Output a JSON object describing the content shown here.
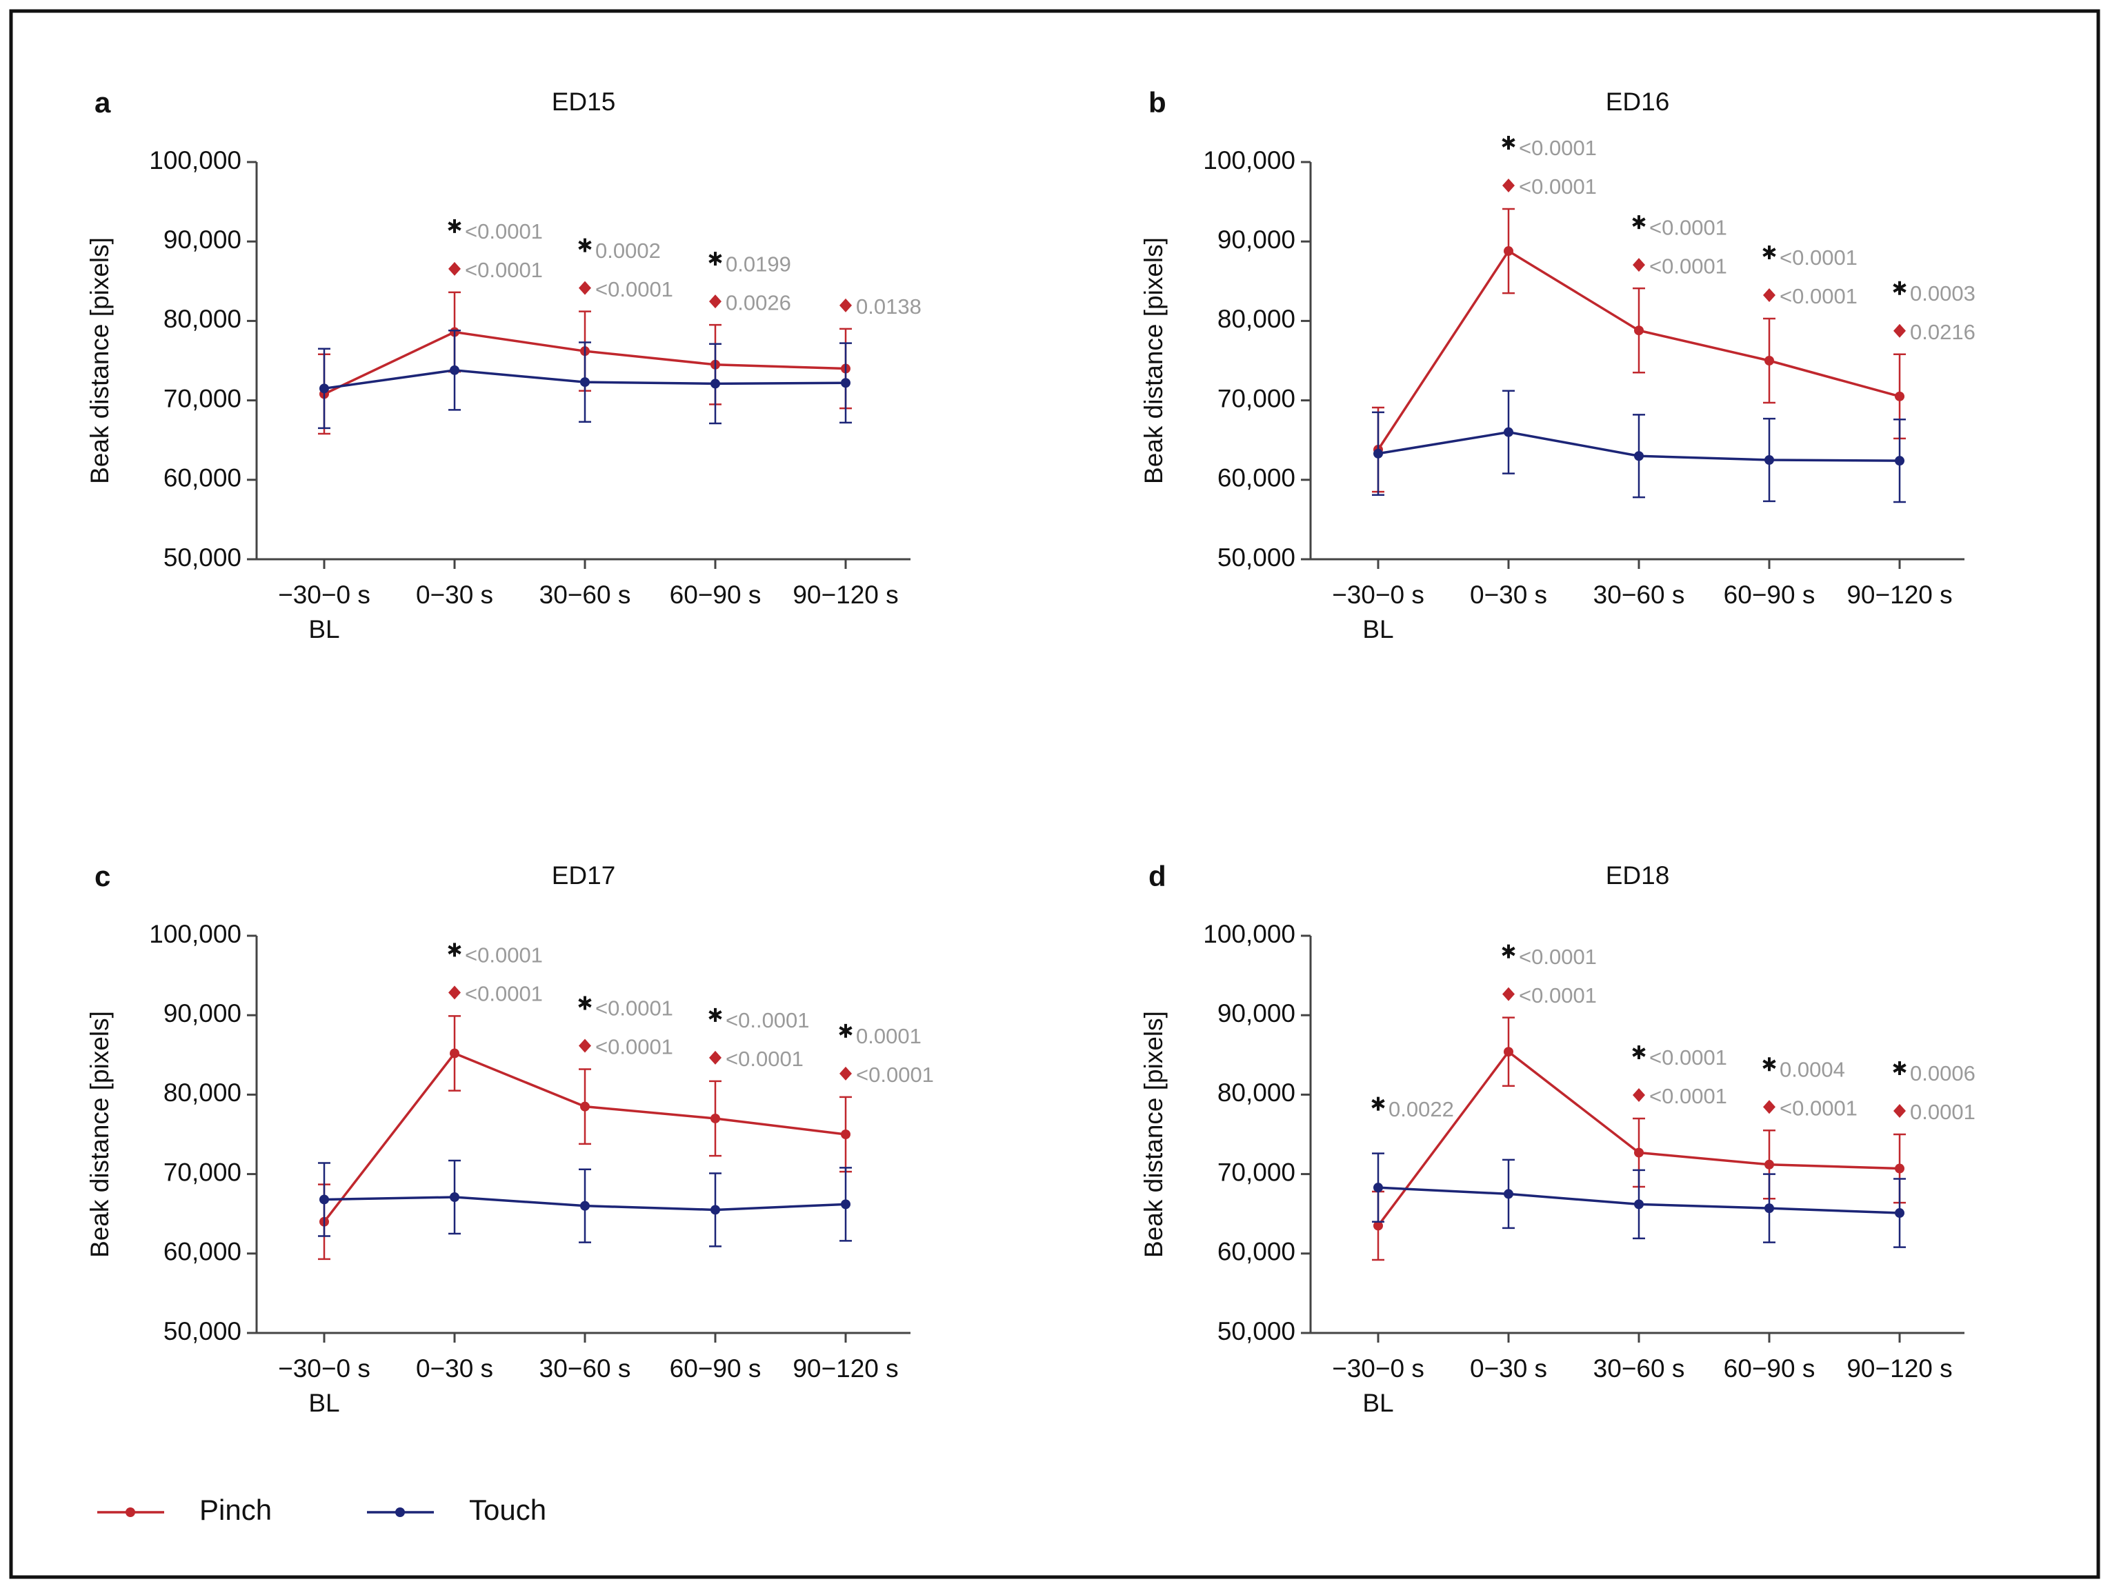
{
  "chart_data": [
    {
      "type": "line",
      "label": "a",
      "title": "ED15",
      "ylabel": "Beak distance [pixels]",
      "categories": [
        "−30−0 s",
        "0−30 s",
        "30−60 s",
        "60−90 s",
        "90−120 s"
      ],
      "baseline_label": "BL",
      "ylim": [
        50000,
        100000
      ],
      "yticks": [
        {
          "value": 50000,
          "label": "50,000"
        },
        {
          "value": 60000,
          "label": "60,000"
        },
        {
          "value": 70000,
          "label": "70,000"
        },
        {
          "value": 80000,
          "label": "80,000"
        },
        {
          "value": 90000,
          "label": "90,000"
        },
        {
          "value": 100000,
          "label": "100,000"
        }
      ],
      "series": [
        {
          "name": "Pinch",
          "color": "#c0272d",
          "values": [
            70800,
            78600,
            76200,
            74500,
            74000
          ],
          "errors": [
            5000,
            5000,
            5000,
            5000,
            5000
          ]
        },
        {
          "name": "Touch",
          "color": "#1c2577",
          "values": [
            71500,
            73800,
            72300,
            72100,
            72200
          ],
          "errors": [
            5000,
            5000,
            5000,
            5000,
            5000
          ]
        }
      ],
      "star_labels": [
        null,
        "<0.0001",
        "0.0002",
        "0.0199",
        null
      ],
      "diamond_labels": [
        null,
        "<0.0001",
        "<0.0001",
        "0.0026",
        "0.0138"
      ]
    },
    {
      "type": "line",
      "label": "b",
      "title": "ED16",
      "ylabel": "Beak distance [pixels]",
      "categories": [
        "−30−0 s",
        "0−30 s",
        "30−60 s",
        "60−90 s",
        "90−120 s"
      ],
      "baseline_label": "BL",
      "ylim": [
        50000,
        100000
      ],
      "yticks": [
        {
          "value": 50000,
          "label": "50,000"
        },
        {
          "value": 60000,
          "label": "60,000"
        },
        {
          "value": 70000,
          "label": "70,000"
        },
        {
          "value": 80000,
          "label": "80,000"
        },
        {
          "value": 90000,
          "label": "90,000"
        },
        {
          "value": 100000,
          "label": "100,000"
        }
      ],
      "series": [
        {
          "name": "Pinch",
          "color": "#c0272d",
          "values": [
            63800,
            88800,
            78800,
            75000,
            70500
          ],
          "errors": [
            5300,
            5300,
            5300,
            5300,
            5300
          ]
        },
        {
          "name": "Touch",
          "color": "#1c2577",
          "values": [
            63300,
            66000,
            63000,
            62500,
            62400
          ],
          "errors": [
            5200,
            5200,
            5200,
            5200,
            5200
          ]
        }
      ],
      "star_labels": [
        null,
        "<0.0001",
        "<0.0001",
        "<0.0001",
        "0.0003"
      ],
      "diamond_labels": [
        null,
        "<0.0001",
        "<0.0001",
        "<0.0001",
        "0.0216"
      ]
    },
    {
      "type": "line",
      "label": "c",
      "title": "ED17",
      "ylabel": "Beak distance [pixels]",
      "categories": [
        "−30−0 s",
        "0−30 s",
        "30−60 s",
        "60−90 s",
        "90−120 s"
      ],
      "baseline_label": "BL",
      "ylim": [
        50000,
        100000
      ],
      "yticks": [
        {
          "value": 50000,
          "label": "50,000"
        },
        {
          "value": 60000,
          "label": "60,000"
        },
        {
          "value": 70000,
          "label": "70,000"
        },
        {
          "value": 80000,
          "label": "80,000"
        },
        {
          "value": 90000,
          "label": "90,000"
        },
        {
          "value": 100000,
          "label": "100,000"
        }
      ],
      "series": [
        {
          "name": "Pinch",
          "color": "#c0272d",
          "values": [
            64000,
            85200,
            78500,
            77000,
            75000
          ],
          "errors": [
            4700,
            4700,
            4700,
            4700,
            4700
          ]
        },
        {
          "name": "Touch",
          "color": "#1c2577",
          "values": [
            66800,
            67100,
            66000,
            65500,
            66200
          ],
          "errors": [
            4600,
            4600,
            4600,
            4600,
            4600
          ]
        }
      ],
      "star_labels": [
        null,
        "<0.0001",
        "<0.0001",
        "<0..0001",
        "0.0001"
      ],
      "diamond_labels": [
        null,
        "<0.0001",
        "<0.0001",
        "<0.0001",
        "<0.0001"
      ]
    },
    {
      "type": "line",
      "label": "d",
      "title": "ED18",
      "ylabel": "Beak distance [pixels]",
      "categories": [
        "−30−0 s",
        "0−30 s",
        "30−60 s",
        "60−90 s",
        "90−120 s"
      ],
      "baseline_label": "BL",
      "ylim": [
        50000,
        100000
      ],
      "yticks": [
        {
          "value": 50000,
          "label": "50,000"
        },
        {
          "value": 60000,
          "label": "60,000"
        },
        {
          "value": 70000,
          "label": "70,000"
        },
        {
          "value": 80000,
          "label": "80,000"
        },
        {
          "value": 90000,
          "label": "90,000"
        },
        {
          "value": 100000,
          "label": "100,000"
        }
      ],
      "series": [
        {
          "name": "Pinch",
          "color": "#c0272d",
          "values": [
            63500,
            85400,
            72700,
            71200,
            70700
          ],
          "errors": [
            4300,
            4300,
            4300,
            4300,
            4300
          ]
        },
        {
          "name": "Touch",
          "color": "#1c2577",
          "values": [
            68300,
            67500,
            66200,
            65700,
            65100
          ],
          "errors": [
            4300,
            4300,
            4300,
            4300,
            4300
          ]
        }
      ],
      "star_labels": [
        "0.0022",
        "<0.0001",
        "<0.0001",
        "0.0004",
        "0.0006"
      ],
      "diamond_labels": [
        null,
        "<0.0001",
        "<0.0001",
        "<0.0001",
        "0.0001"
      ]
    }
  ]
}
